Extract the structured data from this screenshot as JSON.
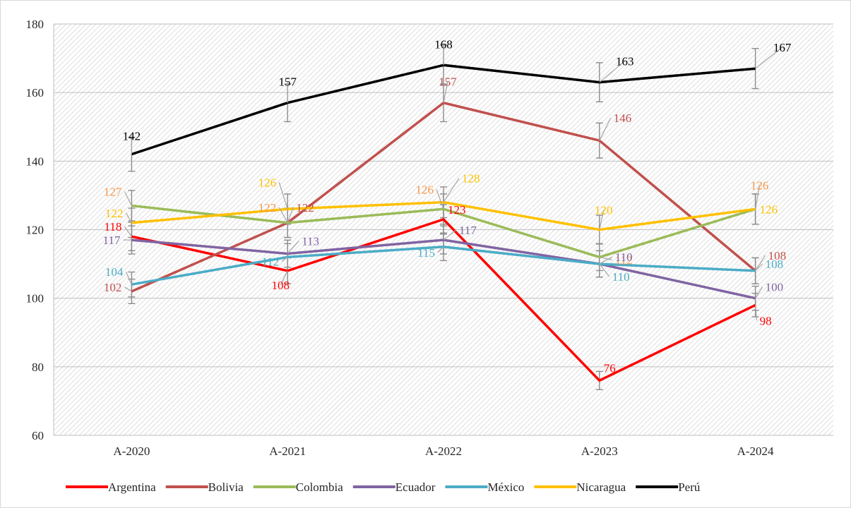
{
  "chart_data": {
    "type": "line",
    "title": "",
    "xlabel": "",
    "ylabel": "",
    "categories": [
      "A-2020",
      "A-2021",
      "A-2022",
      "A-2023",
      "A-2024"
    ],
    "ylim": [
      60,
      180
    ],
    "yticks": [
      60,
      80,
      100,
      120,
      140,
      160,
      180
    ],
    "grid": "hatched plot area",
    "legend_position": "bottom",
    "error_bars": true,
    "series": [
      {
        "name": "Argentina",
        "color": "#ff0000",
        "label_color": "#ff0000",
        "values": [
          118,
          108,
          123,
          76,
          98
        ],
        "label_texts": [
          "118",
          "108",
          "123",
          "76",
          "98"
        ]
      },
      {
        "name": "Bolivia",
        "color": "#c0504d",
        "label_color": "#c0504d",
        "values": [
          102,
          122,
          157,
          146,
          108
        ],
        "label_texts": [
          "102",
          "122",
          "157",
          "146",
          "108"
        ]
      },
      {
        "name": "Colombia",
        "color": "#9bbb59",
        "label_color": "#f79646",
        "values": [
          127,
          122,
          126,
          112,
          126
        ],
        "label_texts": [
          "127",
          "122",
          "126",
          "112",
          "126"
        ]
      },
      {
        "name": "Ecuador",
        "color": "#8064a2",
        "label_color": "#8064a2",
        "values": [
          117,
          113,
          117,
          110,
          100
        ],
        "label_texts": [
          "117",
          "113",
          "117",
          "110",
          "100"
        ]
      },
      {
        "name": "México",
        "color": "#4bacc6",
        "label_color": "#4bacc6",
        "values": [
          104,
          112,
          115,
          110,
          108
        ],
        "label_texts": [
          "104",
          "112",
          "115",
          "110",
          "108"
        ]
      },
      {
        "name": "Nicaragua",
        "color": "#ffc000",
        "label_color": "#ffc000",
        "values": [
          122,
          126,
          128,
          120,
          126
        ],
        "label_texts": [
          "122",
          "126",
          "128",
          "120",
          "126"
        ]
      },
      {
        "name": "Perú",
        "color": "#000000",
        "label_color": "#000000",
        "values": [
          142,
          157,
          168,
          163,
          167
        ],
        "label_texts": [
          "142",
          "157",
          "168",
          "163",
          "167"
        ]
      }
    ]
  }
}
